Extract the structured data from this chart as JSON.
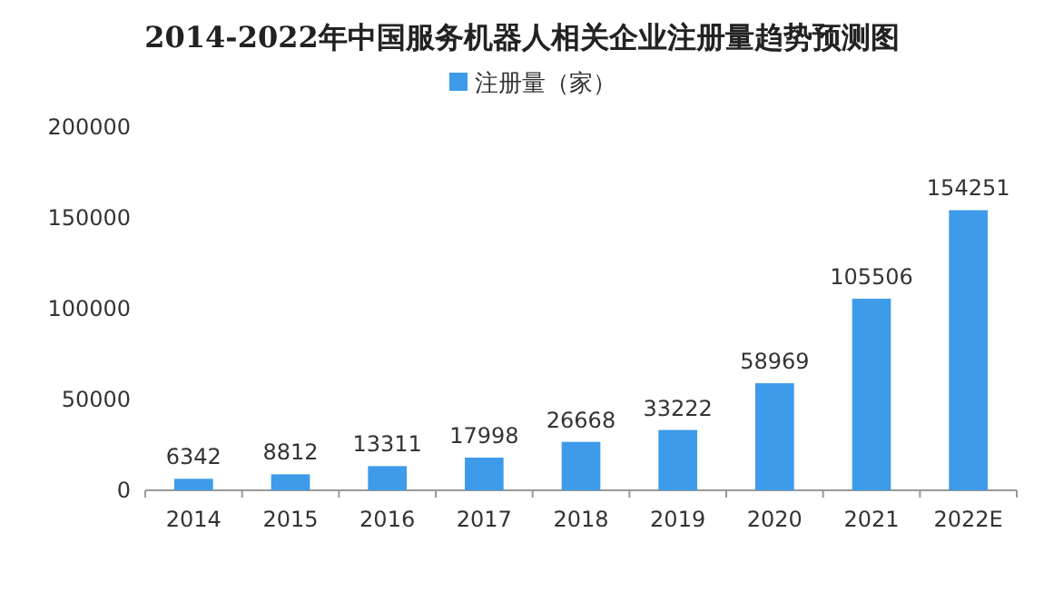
{
  "chart_data": {
    "type": "bar",
    "title": "2014-2022年中国服务机器人相关企业注册量趋势预测图",
    "categories": [
      "2014",
      "2015",
      "2016",
      "2017",
      "2018",
      "2019",
      "2020",
      "2021",
      "2022E"
    ],
    "series": [
      {
        "name": "注册量（家）",
        "color": "#3d9be9",
        "values": [
          6342,
          8812,
          13311,
          17998,
          26668,
          33222,
          58969,
          105506,
          154251
        ]
      }
    ],
    "ylim": [
      0,
      200000
    ],
    "yticks": [
      0,
      50000,
      100000,
      150000,
      200000
    ],
    "data_labels": true,
    "legend": "top"
  }
}
